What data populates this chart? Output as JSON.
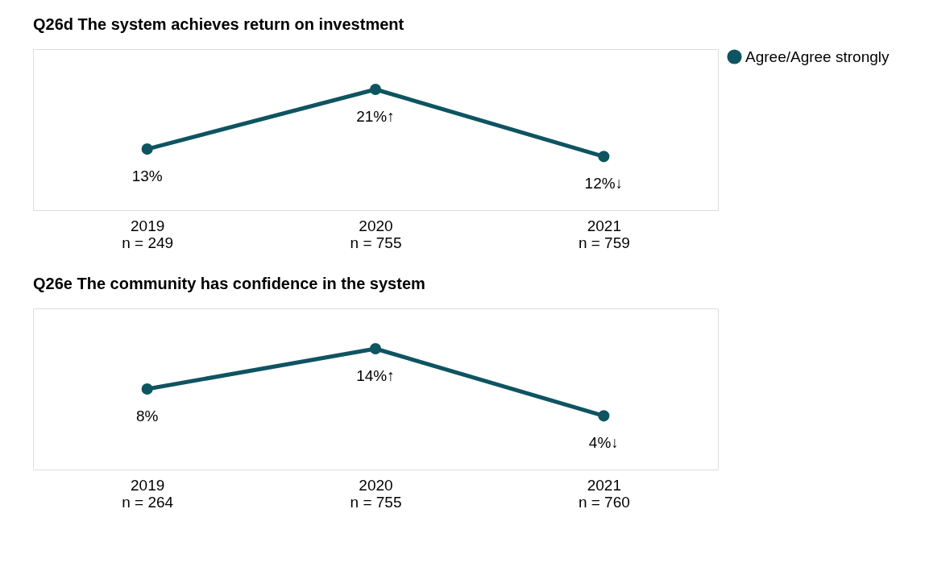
{
  "chart_data": [
    {
      "type": "line",
      "title": "Q26d The system achieves return on investment",
      "categories": [
        "2019\nn = 249",
        "2020\nn = 755",
        "2021\nn = 759"
      ],
      "legend": "right",
      "marker": "circle",
      "series": [
        {
          "name": "Agree/Agree strongly",
          "color": "#0e5461",
          "values": [
            13,
            21,
            12
          ],
          "value_labels": [
            "13%",
            "21%↑",
            "12%↓"
          ]
        }
      ]
    },
    {
      "type": "line",
      "title": "Q26e The community has confidence in the system",
      "categories": [
        "2019\nn = 264",
        "2020\nn = 755",
        "2021\nn = 760"
      ],
      "legend": "right",
      "marker": "circle",
      "series": [
        {
          "name": "Agree/Agree strongly",
          "color": "#0e5461",
          "values": [
            8,
            14,
            4
          ],
          "value_labels": [
            "8%",
            "14%↑",
            "4%↓"
          ]
        }
      ]
    }
  ]
}
